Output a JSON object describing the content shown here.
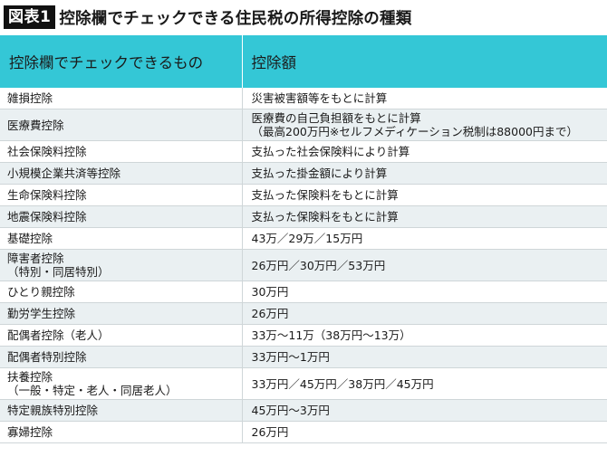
{
  "figure": {
    "badge": "図表1",
    "title": "控除欄でチェックできる住民税の所得控除の種類"
  },
  "table": {
    "headers": [
      "控除欄でチェックできるもの",
      "控除額"
    ],
    "rows": [
      {
        "name": [
          "雑損控除"
        ],
        "amount": [
          "災害被害額等をもとに計算"
        ]
      },
      {
        "name": [
          "医療費控除"
        ],
        "amount": [
          "医療費の自己負担額をもとに計算",
          "（最高200万円※セルフメディケーション税制は88000円まで）"
        ]
      },
      {
        "name": [
          "社会保険料控除"
        ],
        "amount": [
          "支払った社会保険料により計算"
        ]
      },
      {
        "name": [
          "小規模企業共済等控除"
        ],
        "amount": [
          "支払った掛金額により計算"
        ]
      },
      {
        "name": [
          "生命保険料控除"
        ],
        "amount": [
          "支払った保険料をもとに計算"
        ]
      },
      {
        "name": [
          "地震保険料控除"
        ],
        "amount": [
          "支払った保険料をもとに計算"
        ]
      },
      {
        "name": [
          "基礎控除"
        ],
        "amount": [
          "43万／29万／15万円"
        ]
      },
      {
        "name": [
          "障害者控除",
          "（特別・同居特別）"
        ],
        "amount": [
          "26万円／30万円／53万円"
        ]
      },
      {
        "name": [
          "ひとり親控除"
        ],
        "amount": [
          "30万円"
        ]
      },
      {
        "name": [
          "勤労学生控除"
        ],
        "amount": [
          "26万円"
        ]
      },
      {
        "name": [
          "配偶者控除（老人）"
        ],
        "amount": [
          "33万〜11万（38万円〜13万）"
        ]
      },
      {
        "name": [
          "配偶者特別控除"
        ],
        "amount": [
          "33万円〜1万円"
        ]
      },
      {
        "name": [
          "扶養控除",
          "（一般・特定・老人・同居老人）"
        ],
        "amount": [
          "33万円／45万円／38万円／45万円"
        ]
      },
      {
        "name": [
          "特定親族特別控除"
        ],
        "amount": [
          "45万円〜3万円"
        ]
      },
      {
        "name": [
          "寡婦控除"
        ],
        "amount": [
          "26万円"
        ]
      }
    ]
  },
  "colors": {
    "header_bg": "#34c7d6",
    "stripe_bg": "#eaf0f2",
    "badge_bg": "#111111"
  }
}
